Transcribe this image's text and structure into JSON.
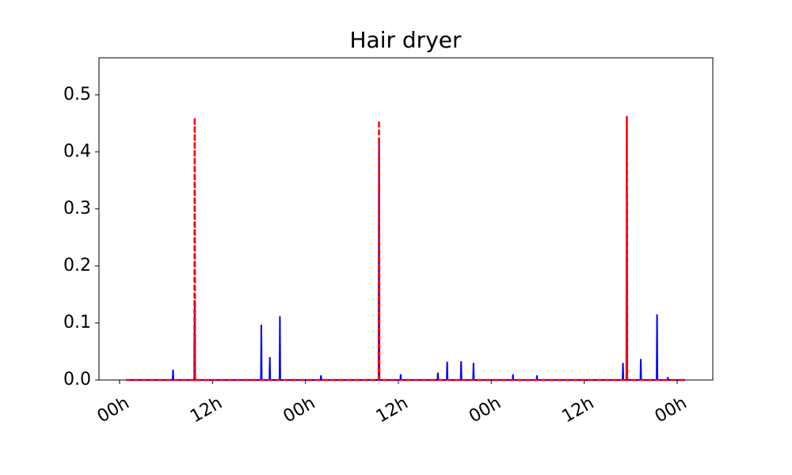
{
  "chart_data": {
    "type": "line",
    "title": "Hair dryer",
    "x": [
      0.8,
      6.85,
      6.9,
      6.95,
      9.65,
      9.7,
      9.75,
      18.25,
      18.3,
      18.35,
      19.35,
      19.4,
      19.45,
      20.65,
      20.7,
      20.75,
      25.95,
      26,
      26.05,
      33.45,
      33.5,
      33.55,
      36.25,
      36.3,
      36.35,
      41.05,
      41.1,
      41.15,
      42.25,
      42.3,
      42.35,
      44.05,
      44.1,
      44.15,
      45.65,
      45.7,
      45.75,
      50.75,
      50.8,
      50.85,
      53.85,
      53.9,
      53.95,
      64.95,
      65,
      65.05,
      65.45,
      65.5,
      65.55,
      67.25,
      67.3,
      67.35,
      69.35,
      69.4,
      69.45,
      70.75,
      70.8,
      70.85,
      73
    ],
    "series": [
      {
        "color": "#0000ff",
        "dash": false,
        "values": [
          0,
          0,
          0.018,
          0,
          0,
          0.14,
          0,
          0,
          0.097,
          0,
          0,
          0.04,
          0,
          0,
          0.112,
          0,
          0,
          0.008,
          0,
          0,
          0.42,
          0,
          0,
          0.01,
          0,
          0,
          0.013,
          0,
          0,
          0.032,
          0,
          0,
          0.033,
          0,
          0,
          0.03,
          0,
          0,
          0.01,
          0,
          0,
          0.008,
          0,
          0,
          0.03,
          0,
          0,
          0.45,
          0,
          0,
          0.037,
          0,
          0,
          0.115,
          0,
          0,
          0.005,
          0,
          0
        ]
      },
      {
        "color": "#ff0000",
        "dash": true,
        "values": [
          0,
          0,
          0,
          0,
          0,
          0.46,
          0,
          0,
          0,
          0,
          0,
          0,
          0,
          0,
          0,
          0,
          0,
          0,
          0,
          0,
          0.455,
          0,
          0,
          0,
          0,
          0,
          0,
          0,
          0,
          0,
          0,
          0,
          0,
          0,
          0,
          0,
          0,
          0,
          0,
          0,
          0,
          0,
          0,
          0,
          0,
          0,
          0,
          0.463,
          0,
          0,
          0,
          0,
          0,
          0,
          0,
          0,
          0,
          0,
          0
        ]
      }
    ],
    "xlim": [
      -2.66,
      76.6
    ],
    "xticks": [
      {
        "value": 0,
        "label": "00h"
      },
      {
        "value": 12,
        "label": "12h"
      },
      {
        "value": 24,
        "label": "00h"
      },
      {
        "value": 36,
        "label": "12h"
      },
      {
        "value": 48,
        "label": "00h"
      },
      {
        "value": 60,
        "label": "12h"
      },
      {
        "value": 72,
        "label": "00h"
      }
    ],
    "ylim": [
      0,
      0.565
    ],
    "yticks": [
      {
        "value": 0,
        "label": "0.0"
      },
      0.1,
      0.2,
      0.3,
      0.4,
      0.5
    ]
  }
}
